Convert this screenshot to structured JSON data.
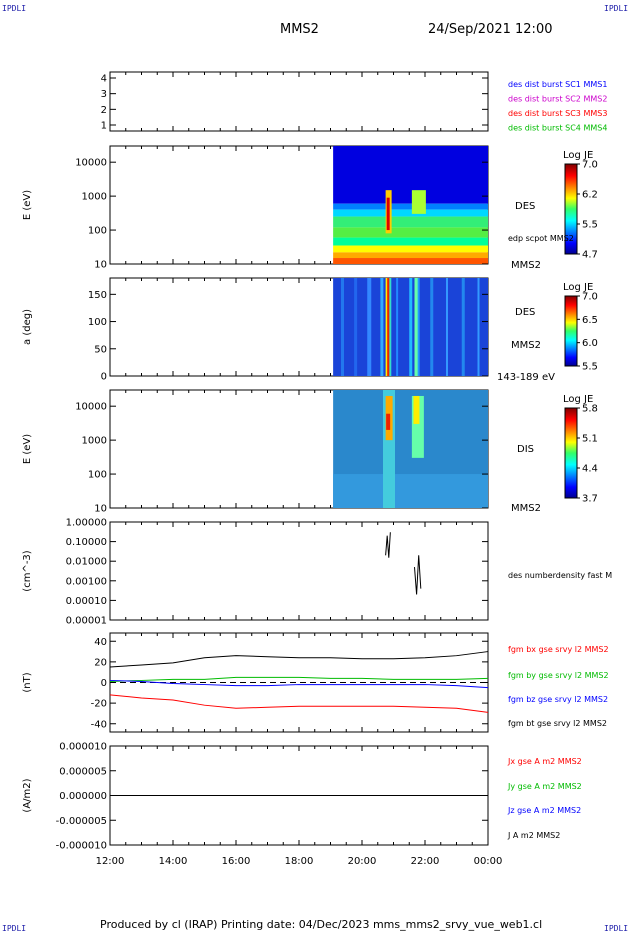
{
  "header": {
    "corner_tl": "IPDLI",
    "corner_tr": "IPDLI",
    "corner_bl": "IPDLI",
    "corner_br": "IPDLI",
    "spacecraft": "MMS2",
    "datetime": "24/Sep/2021 12:00"
  },
  "footer": {
    "text": "Produced by cl (IRAP)   Printing date: 04/Dec/2023   mms_mms2_srvy_vue_web1.cl"
  },
  "colors": {
    "mms1": "#0000ff",
    "mms2": "#cc00cc",
    "mms3": "#ff0000",
    "mms4": "#00bb00",
    "bx": "#ff0000",
    "by": "#00bb00",
    "bz": "#0000ff",
    "bt": "#000000"
  },
  "chart_data": [
    {
      "type": "table",
      "panel": "burst",
      "yticks": [
        "4",
        "3",
        "2",
        "1"
      ],
      "legend": [
        {
          "text": "des dist burst SC1 MMS1",
          "color": "#0000ff"
        },
        {
          "text": "des dist burst SC2 MMS2",
          "color": "#cc00cc"
        },
        {
          "text": "des dist burst SC3 MMS3",
          "color": "#ff0000"
        },
        {
          "text": "des dist burst SC4 MMS4",
          "color": "#00bb00"
        }
      ]
    },
    {
      "type": "heatmap",
      "panel": "des_energy",
      "ylabel": "E (eV)",
      "yscale": "log",
      "ylim": [
        10,
        30000
      ],
      "yticks": [
        "10000",
        "1000",
        "100",
        "10"
      ],
      "data_start": "19:05",
      "colorbar": {
        "title": "Log JE",
        "ticks": [
          "7.0",
          "6.2",
          "5.5",
          "4.7"
        ]
      },
      "right_labels": [
        "DES",
        "edp scpot MMS2",
        "MMS2"
      ]
    },
    {
      "type": "heatmap",
      "panel": "des_pitch",
      "ylabel": "a (deg)",
      "ylim": [
        0,
        180
      ],
      "yticks": [
        "150",
        "100",
        "50",
        "0"
      ],
      "data_start": "19:05",
      "colorbar": {
        "title": "Log JE",
        "ticks": [
          "7.0",
          "6.5",
          "6.0",
          "5.5"
        ]
      },
      "right_labels": [
        "DES",
        "MMS2",
        "143-189 eV"
      ]
    },
    {
      "type": "heatmap",
      "panel": "dis_energy",
      "ylabel": "E (eV)",
      "yscale": "log",
      "ylim": [
        10,
        30000
      ],
      "yticks": [
        "10000",
        "1000",
        "100",
        "10"
      ],
      "data_start": "19:05",
      "colorbar": {
        "title": "Log JE",
        "ticks": [
          "5.8",
          "5.1",
          "4.4",
          "3.7"
        ]
      },
      "right_labels": [
        "DIS",
        "MMS2"
      ]
    },
    {
      "type": "line",
      "panel": "density",
      "ylabel": "(cm^-3)",
      "yscale": "log",
      "ylim": [
        1e-05,
        1.0
      ],
      "yticks": [
        "1.00000",
        "0.10000",
        "0.01000",
        "0.00100",
        "0.00010",
        "0.00001"
      ],
      "series": [
        {
          "name": "des numberdensity fast M",
          "color": "#000000",
          "x": [
            "20:45",
            "20:48",
            "20:51",
            "20:54",
            "21:40",
            "21:44",
            "21:48",
            "21:52"
          ],
          "y": [
            0.02,
            0.2,
            0.015,
            0.3,
            0.005,
            0.0002,
            0.02,
            0.0004
          ]
        }
      ]
    },
    {
      "type": "line",
      "panel": "fgm",
      "ylabel": "(nT)",
      "ylim": [
        -48,
        48
      ],
      "yticks": [
        "40",
        "20",
        "0",
        "-20",
        "-40"
      ],
      "series": [
        {
          "name": "fgm bx gse srvy l2 MMS2",
          "color": "#ff0000",
          "x": [
            "12:00",
            "13:00",
            "14:00",
            "15:00",
            "16:00",
            "17:00",
            "18:00",
            "19:00",
            "20:00",
            "21:00",
            "22:00",
            "23:00",
            "24:00"
          ],
          "y": [
            -12,
            -15,
            -17,
            -22,
            -25,
            -24,
            -23,
            -23,
            -23,
            -23,
            -24,
            -25,
            -29
          ]
        },
        {
          "name": "fgm by gse srvy l2 MMS2",
          "color": "#00bb00",
          "x": [
            "12:00",
            "13:00",
            "14:00",
            "15:00",
            "16:00",
            "17:00",
            "18:00",
            "19:00",
            "20:00",
            "21:00",
            "22:00",
            "23:00",
            "24:00"
          ],
          "y": [
            1,
            2,
            3,
            3,
            5,
            5,
            5,
            4,
            4,
            3,
            3,
            3,
            4
          ]
        },
        {
          "name": "fgm bz gse srvy l2 MMS2",
          "color": "#0000ff",
          "x": [
            "12:00",
            "13:00",
            "14:00",
            "15:00",
            "16:00",
            "17:00",
            "18:00",
            "19:00",
            "20:00",
            "21:00",
            "22:00",
            "23:00",
            "24:00"
          ],
          "y": [
            2,
            1,
            -1,
            -2,
            -3,
            -3,
            -2,
            -2,
            -2,
            -2,
            -2,
            -3,
            -5
          ]
        },
        {
          "name": "fgm bt gse srvy l2 MMS2",
          "color": "#000000",
          "x": [
            "12:00",
            "13:00",
            "14:00",
            "15:00",
            "16:00",
            "17:00",
            "18:00",
            "19:00",
            "20:00",
            "21:00",
            "22:00",
            "23:00",
            "24:00"
          ],
          "y": [
            15,
            17,
            19,
            24,
            26,
            25,
            24,
            24,
            23,
            23,
            24,
            26,
            30
          ]
        }
      ]
    },
    {
      "type": "line",
      "panel": "current",
      "ylabel": "(A/m2)",
      "ylim": [
        -0.0001,
        0.0001
      ],
      "yticks": [
        "0.000010",
        "0.000005",
        "0.000000",
        "-0.000005",
        "-0.000010"
      ],
      "series": [
        {
          "name": "Jx gse A m2 MMS2",
          "color": "#ff0000"
        },
        {
          "name": "Jy gse A m2 MMS2",
          "color": "#00bb00"
        },
        {
          "name": "Jz gse A m2 MMS2",
          "color": "#0000ff"
        },
        {
          "name": "J A m2 MMS2",
          "color": "#000000"
        }
      ]
    }
  ],
  "xaxis": {
    "ticks": [
      "12:00",
      "14:00",
      "16:00",
      "18:00",
      "20:00",
      "22:00",
      "00:00"
    ],
    "start": "12:00",
    "end": "00:00"
  }
}
